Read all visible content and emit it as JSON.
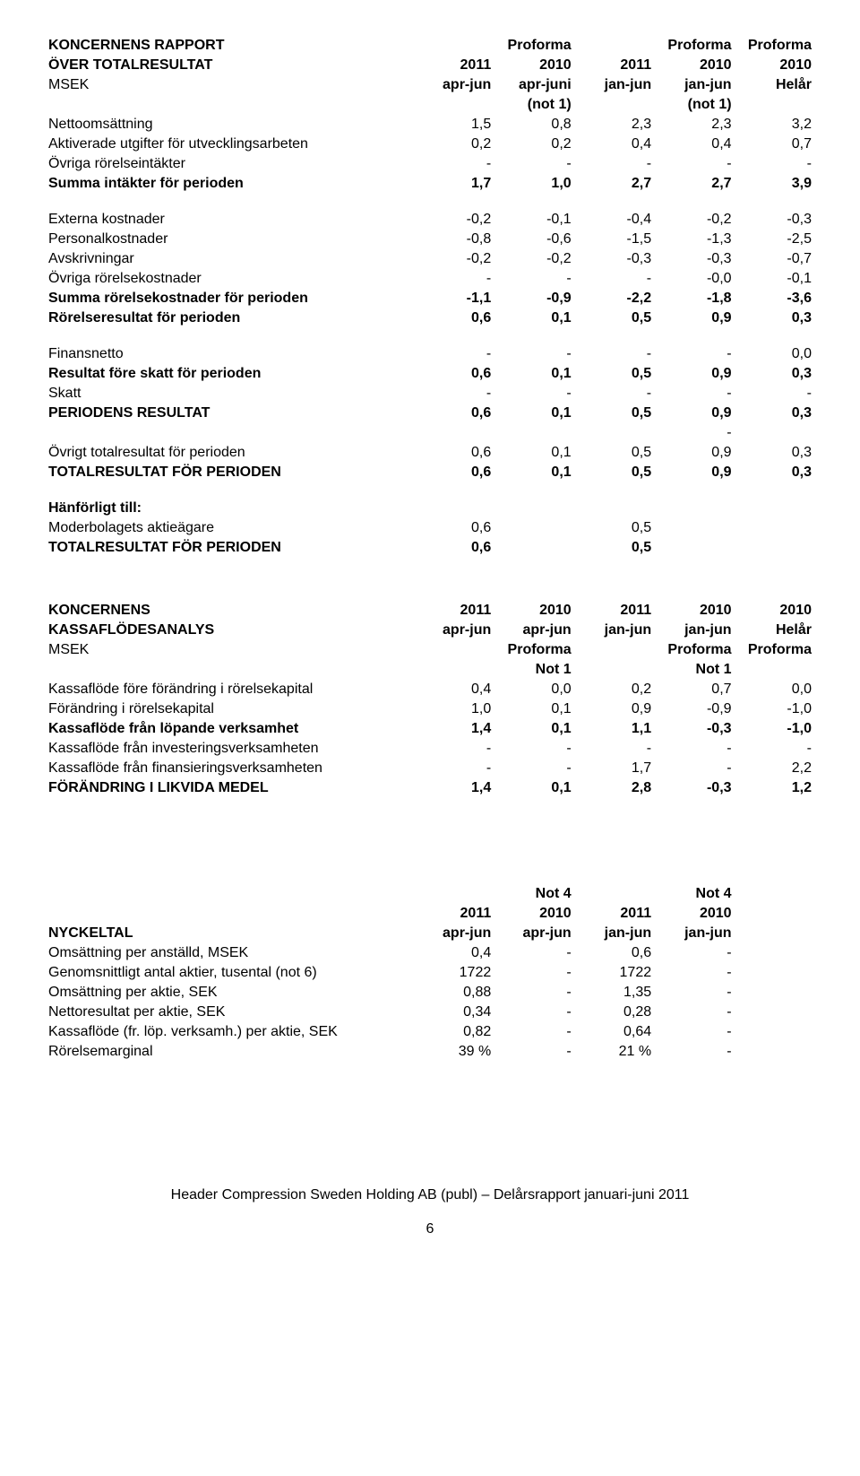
{
  "t1": {
    "header": {
      "l1": "KONCERNENS RAPPORT",
      "l2": "ÖVER TOTALRESULTAT",
      "l3": "MSEK",
      "c1a": "2011",
      "c1b": "apr-jun",
      "c2a": "Proforma",
      "c2b": "2010",
      "c2c": "apr-juni",
      "c2d": "(not 1)",
      "c3a": "2011",
      "c3b": "jan-jun",
      "c4a": "Proforma",
      "c4b": "2010",
      "c4c": "jan-jun",
      "c4d": "(not 1)",
      "c5a": "Proforma",
      "c5b": "2010",
      "c5c": "Helår"
    },
    "rows": [
      {
        "label": "Nettoomsättning",
        "v": [
          "1,5",
          "0,8",
          "2,3",
          "2,3",
          "3,2"
        ],
        "b": false
      },
      {
        "label": "Aktiverade utgifter för utvecklingsarbeten",
        "v": [
          "0,2",
          "0,2",
          "0,4",
          "0,4",
          "0,7"
        ],
        "b": false
      },
      {
        "label": "Övriga rörelseintäkter",
        "v": [
          "-",
          "-",
          "-",
          "-",
          "-"
        ],
        "b": false
      },
      {
        "label": "Summa intäkter för perioden",
        "v": [
          "1,7",
          "1,0",
          "2,7",
          "2,7",
          "3,9"
        ],
        "b": true
      },
      {
        "spacer": true
      },
      {
        "label": "Externa kostnader",
        "v": [
          "-0,2",
          "-0,1",
          "-0,4",
          "-0,2",
          "-0,3"
        ],
        "b": false
      },
      {
        "label": "Personalkostnader",
        "v": [
          "-0,8",
          "-0,6",
          "-1,5",
          "-1,3",
          "-2,5"
        ],
        "b": false
      },
      {
        "label": "Avskrivningar",
        "v": [
          "-0,2",
          "-0,2",
          "-0,3",
          "-0,3",
          "-0,7"
        ],
        "b": false
      },
      {
        "label": "Övriga rörelsekostnader",
        "v": [
          "-",
          "-",
          "-",
          "-0,0",
          "-0,1"
        ],
        "b": false
      },
      {
        "label": "Summa rörelsekostnader för perioden",
        "v": [
          "-1,1",
          "-0,9",
          "-2,2",
          "-1,8",
          "-3,6"
        ],
        "b": true
      },
      {
        "label": "Rörelseresultat för perioden",
        "v": [
          "0,6",
          "0,1",
          "0,5",
          "0,9",
          "0,3"
        ],
        "b": true
      },
      {
        "spacer": true
      },
      {
        "label": "Finansnetto",
        "v": [
          "-",
          "-",
          "-",
          "-",
          "0,0"
        ],
        "b": false
      },
      {
        "label": "Resultat före skatt för perioden",
        "v": [
          "0,6",
          "0,1",
          "0,5",
          "0,9",
          "0,3"
        ],
        "b": true
      },
      {
        "label": "Skatt",
        "v": [
          "-",
          "-",
          "-",
          "-",
          "-"
        ],
        "b": false
      },
      {
        "label": "PERIODENS RESULTAT",
        "v": [
          "0,6",
          "0,1",
          "0,5",
          "0,9",
          "0,3"
        ],
        "b": true
      },
      {
        "label": "",
        "v": [
          "",
          "",
          "",
          "-",
          ""
        ],
        "b": false
      },
      {
        "label": "Övrigt totalresultat för perioden",
        "v": [
          "0,6",
          "0,1",
          "0,5",
          "0,9",
          "0,3"
        ],
        "b": false
      },
      {
        "label": "TOTALRESULTAT FÖR PERIODEN",
        "v": [
          "0,6",
          "0,1",
          "0,5",
          "0,9",
          "0,3"
        ],
        "b": true
      },
      {
        "spacer": true
      },
      {
        "label": "Hänförligt till:",
        "v": [
          "",
          "",
          "",
          "",
          ""
        ],
        "b": true
      },
      {
        "label": "Moderbolagets aktieägare",
        "v": [
          "0,6",
          "",
          "0,5",
          "",
          ""
        ],
        "b": false
      },
      {
        "label": "TOTALRESULTAT FÖR PERIODEN",
        "v": [
          "0,6",
          "",
          "0,5",
          "",
          ""
        ],
        "b": true
      }
    ]
  },
  "t2": {
    "header": {
      "l1": "KONCERNENS",
      "l2": "KASSAFLÖDESANALYS",
      "l3": "MSEK",
      "c1a": "2011",
      "c1b": "apr-jun",
      "c2a": "2010",
      "c2b": "apr-jun",
      "c2c": "Proforma",
      "c2d": "Not 1",
      "c3a": "2011",
      "c3b": "jan-jun",
      "c4a": "2010",
      "c4b": "jan-jun",
      "c4c": "Proforma",
      "c4d": "Not 1",
      "c5a": "2010",
      "c5b": "Helår",
      "c5c": "Proforma"
    },
    "rows": [
      {
        "label": "Kassaflöde före förändring i rörelsekapital",
        "v": [
          "0,4",
          "0,0",
          "0,2",
          "0,7",
          "0,0"
        ],
        "b": false
      },
      {
        "label": "Förändring i rörelsekapital",
        "v": [
          "1,0",
          "0,1",
          "0,9",
          "-0,9",
          "-1,0"
        ],
        "b": false
      },
      {
        "label": "Kassaflöde från löpande verksamhet",
        "v": [
          "1,4",
          "0,1",
          "1,1",
          "-0,3",
          "-1,0"
        ],
        "b": true
      },
      {
        "label": "Kassaflöde från investeringsverksamheten",
        "v": [
          "-",
          "-",
          "-",
          "-",
          "-"
        ],
        "b": false
      },
      {
        "label": "Kassaflöde från finansieringsverksamheten",
        "v": [
          "-",
          "-",
          "1,7",
          "-",
          "2,2"
        ],
        "b": false
      },
      {
        "label": "FÖRÄNDRING I LIKVIDA MEDEL",
        "v": [
          "1,4",
          "0,1",
          "2,8",
          "-0,3",
          "1,2"
        ],
        "b": true
      }
    ]
  },
  "t3": {
    "header": {
      "l1": "NYCKELTAL",
      "c1a": "2011",
      "c1b": "apr-jun",
      "c2a": "Not 4",
      "c2b": "2010",
      "c2c": "apr-jun",
      "c3a": "2011",
      "c3b": "jan-jun",
      "c4a": "Not 4",
      "c4b": "2010",
      "c4c": "jan-jun"
    },
    "rows": [
      {
        "label": "Omsättning per anställd, MSEK",
        "v": [
          "0,4",
          "-",
          "0,6",
          "-"
        ],
        "b": false
      },
      {
        "label": "Genomsnittligt antal aktier, tusental (not 6)",
        "v": [
          "1722",
          "-",
          "1722",
          "-"
        ],
        "b": false
      },
      {
        "label": "Omsättning per aktie, SEK",
        "v": [
          "0,88",
          "-",
          "1,35",
          "-"
        ],
        "b": false
      },
      {
        "label": "Nettoresultat per aktie, SEK",
        "v": [
          "0,34",
          "-",
          "0,28",
          "-"
        ],
        "b": false
      },
      {
        "label": "Kassaflöde (fr. löp. verksamh.) per aktie, SEK",
        "v": [
          "0,82",
          "-",
          "0,64",
          "-"
        ],
        "b": false
      },
      {
        "label": "Rörelsemarginal",
        "v": [
          "39 %",
          "-",
          "21 %",
          "-"
        ],
        "b": false
      }
    ]
  },
  "footer": "Header Compression Sweden Holding AB (publ) – Delårsrapport januari-juni 2011",
  "pagenum": "6"
}
